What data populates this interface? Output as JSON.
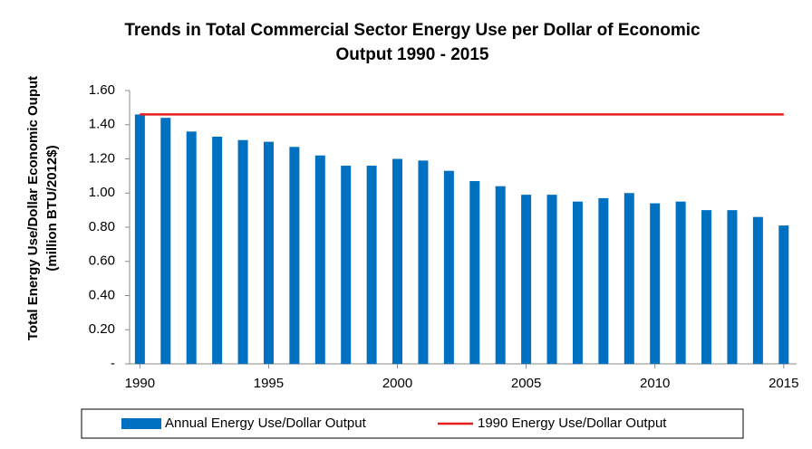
{
  "chart_data": {
    "type": "bar",
    "title": [
      "Trends in Total Commercial Sector Energy Use per Dollar of Economic",
      "Output 1990 - 2015"
    ],
    "y_label": [
      "Total Energy Use/Dollar Economic Ouput",
      "(million BTU/2012$)"
    ],
    "x": [
      1990,
      1991,
      1992,
      1993,
      1994,
      1995,
      1996,
      1997,
      1998,
      1999,
      2000,
      2001,
      2002,
      2003,
      2004,
      2005,
      2006,
      2007,
      2008,
      2009,
      2010,
      2011,
      2012,
      2013,
      2014,
      2015
    ],
    "series": [
      {
        "name": "Annual Energy Use/Dollar Output",
        "color": "#0070c0",
        "type": "bar",
        "values": [
          1.46,
          1.44,
          1.36,
          1.33,
          1.31,
          1.3,
          1.27,
          1.22,
          1.16,
          1.16,
          1.2,
          1.19,
          1.13,
          1.07,
          1.04,
          0.99,
          0.99,
          0.95,
          0.97,
          1.0,
          0.94,
          0.95,
          0.9,
          0.9,
          0.86,
          0.81
        ]
      },
      {
        "name": "1990 Energy Use/Dollar Output",
        "color": "#e81c1c",
        "type": "line",
        "values": [
          1.46,
          1.46,
          1.46,
          1.46,
          1.46,
          1.46,
          1.46,
          1.46,
          1.46,
          1.46,
          1.46,
          1.46,
          1.46,
          1.46,
          1.46,
          1.46,
          1.46,
          1.46,
          1.46,
          1.46,
          1.46,
          1.46,
          1.46,
          1.46,
          1.46,
          1.46
        ]
      }
    ],
    "xlim": [
      1989.6,
      2015.5
    ],
    "xticks": [
      1990,
      1995,
      2000,
      2005,
      2010,
      2015
    ],
    "ylim": [
      0,
      1.6
    ],
    "yticks": [
      {
        "value": 0,
        "label": "-"
      },
      {
        "value": 0.2,
        "label": "0.20"
      },
      {
        "value": 0.4,
        "label": "0.40"
      },
      {
        "value": 0.6,
        "label": "0.60"
      },
      {
        "value": 0.8,
        "label": "0.80"
      },
      {
        "value": 1.0,
        "label": "1.00"
      },
      {
        "value": 1.2,
        "label": "1.20"
      },
      {
        "value": 1.4,
        "label": "1.40"
      },
      {
        "value": 1.6,
        "label": "1.60"
      }
    ],
    "legend": "bottom"
  }
}
